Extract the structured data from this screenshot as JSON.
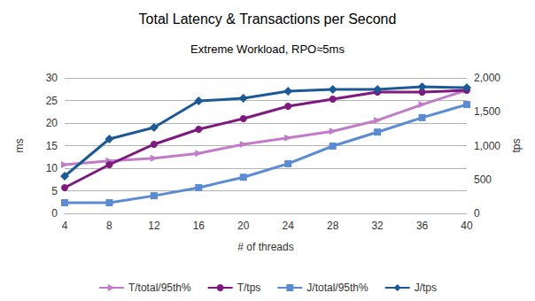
{
  "chart_data": {
    "type": "line",
    "title": "Total Latency & Transactions per Second",
    "subtitle": "Extreme Workload, RPO≈5ms",
    "x_label": "# of threads",
    "y_label": "ms",
    "y2_label": "tps",
    "categories": [
      "4",
      "8",
      "12",
      "16",
      "20",
      "24",
      "28",
      "32",
      "36",
      "40"
    ],
    "ylim": [
      0,
      30
    ],
    "yticks": [
      0,
      5,
      10,
      15,
      20,
      25,
      30
    ],
    "y2lim": [
      0,
      2000
    ],
    "y2ticks": [
      0,
      500,
      1000,
      1500,
      2000
    ],
    "grid": true,
    "legend": "bottom",
    "series": [
      {
        "name": "T/total/95th%",
        "color": "#c27bc8",
        "marker": "triangle",
        "axis": "y",
        "values": [
          10.8,
          11.6,
          12.2,
          13.3,
          15.3,
          16.7,
          18.2,
          20.6,
          24.1,
          27.3
        ]
      },
      {
        "name": "T/tps",
        "color": "#7e1a7e",
        "marker": "circle",
        "axis": "y2",
        "values": [
          379,
          719,
          1020,
          1242,
          1399,
          1581,
          1686,
          1791,
          1791,
          1817
        ]
      },
      {
        "name": "J/total/95th%",
        "color": "#5b8bd3",
        "marker": "square",
        "axis": "y",
        "values": [
          2.35,
          2.35,
          3.9,
          5.7,
          8.0,
          11.0,
          14.9,
          18.0,
          21.2,
          24.1
        ]
      },
      {
        "name": "J/tps",
        "color": "#1b5a96",
        "marker": "diamond",
        "axis": "y2",
        "values": [
          549,
          1098,
          1268,
          1660,
          1699,
          1804,
          1830,
          1830,
          1869,
          1856
        ]
      }
    ]
  }
}
